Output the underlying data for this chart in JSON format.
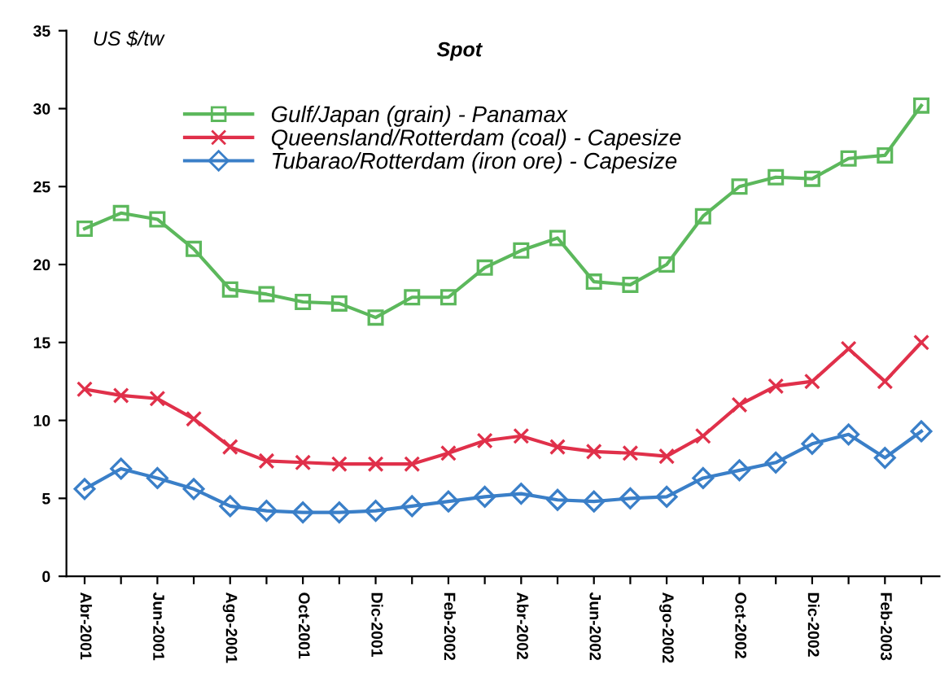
{
  "chart_data": {
    "type": "line",
    "title": "Spot",
    "ylabel": "US $/tw",
    "categories": [
      "Abr-2001",
      null,
      "Jun-2001",
      null,
      "Ago-2001",
      null,
      "Oct-2001",
      null,
      "Dic-2001",
      null,
      "Feb-2002",
      null,
      "Abr-2002",
      null,
      "Jun-2002",
      null,
      "Ago-2002",
      null,
      "Oct-2002",
      null,
      "Dic-2002",
      null,
      "Feb-2003",
      null
    ],
    "series": [
      {
        "name": "Gulf/Japan (grain) - Panamax",
        "color": "#5cb85c",
        "marker": "square",
        "values": [
          22.3,
          23.3,
          22.9,
          21.0,
          18.4,
          18.1,
          17.6,
          17.5,
          16.6,
          17.9,
          17.9,
          19.8,
          20.9,
          21.7,
          18.9,
          18.7,
          20.0,
          23.1,
          25.0,
          25.6,
          25.5,
          26.8,
          27.0,
          30.2
        ]
      },
      {
        "name": "Queensland/Rotterdam (coal) - Capesize",
        "color": "#e0304a",
        "marker": "cross",
        "values": [
          12.0,
          11.6,
          11.4,
          10.1,
          8.3,
          7.4,
          7.3,
          7.2,
          7.2,
          7.2,
          7.9,
          8.7,
          9.0,
          8.3,
          8.0,
          7.9,
          7.7,
          9.0,
          11.0,
          12.2,
          12.5,
          14.6,
          12.5,
          15.0
        ]
      },
      {
        "name": "Tubarao/Rotterdam (iron ore) - Capesize",
        "color": "#3a7fc8",
        "marker": "diamond",
        "values": [
          5.6,
          6.9,
          6.3,
          5.6,
          4.5,
          4.2,
          4.1,
          4.1,
          4.2,
          4.5,
          4.8,
          5.1,
          5.3,
          4.9,
          4.8,
          5.0,
          5.1,
          6.3,
          6.8,
          7.3,
          8.5,
          9.1,
          7.6,
          9.3
        ]
      }
    ],
    "ylim": [
      0,
      35
    ],
    "yticks": [
      0,
      5,
      10,
      15,
      20,
      25,
      30,
      35
    ],
    "grid": false,
    "legend": "top"
  }
}
